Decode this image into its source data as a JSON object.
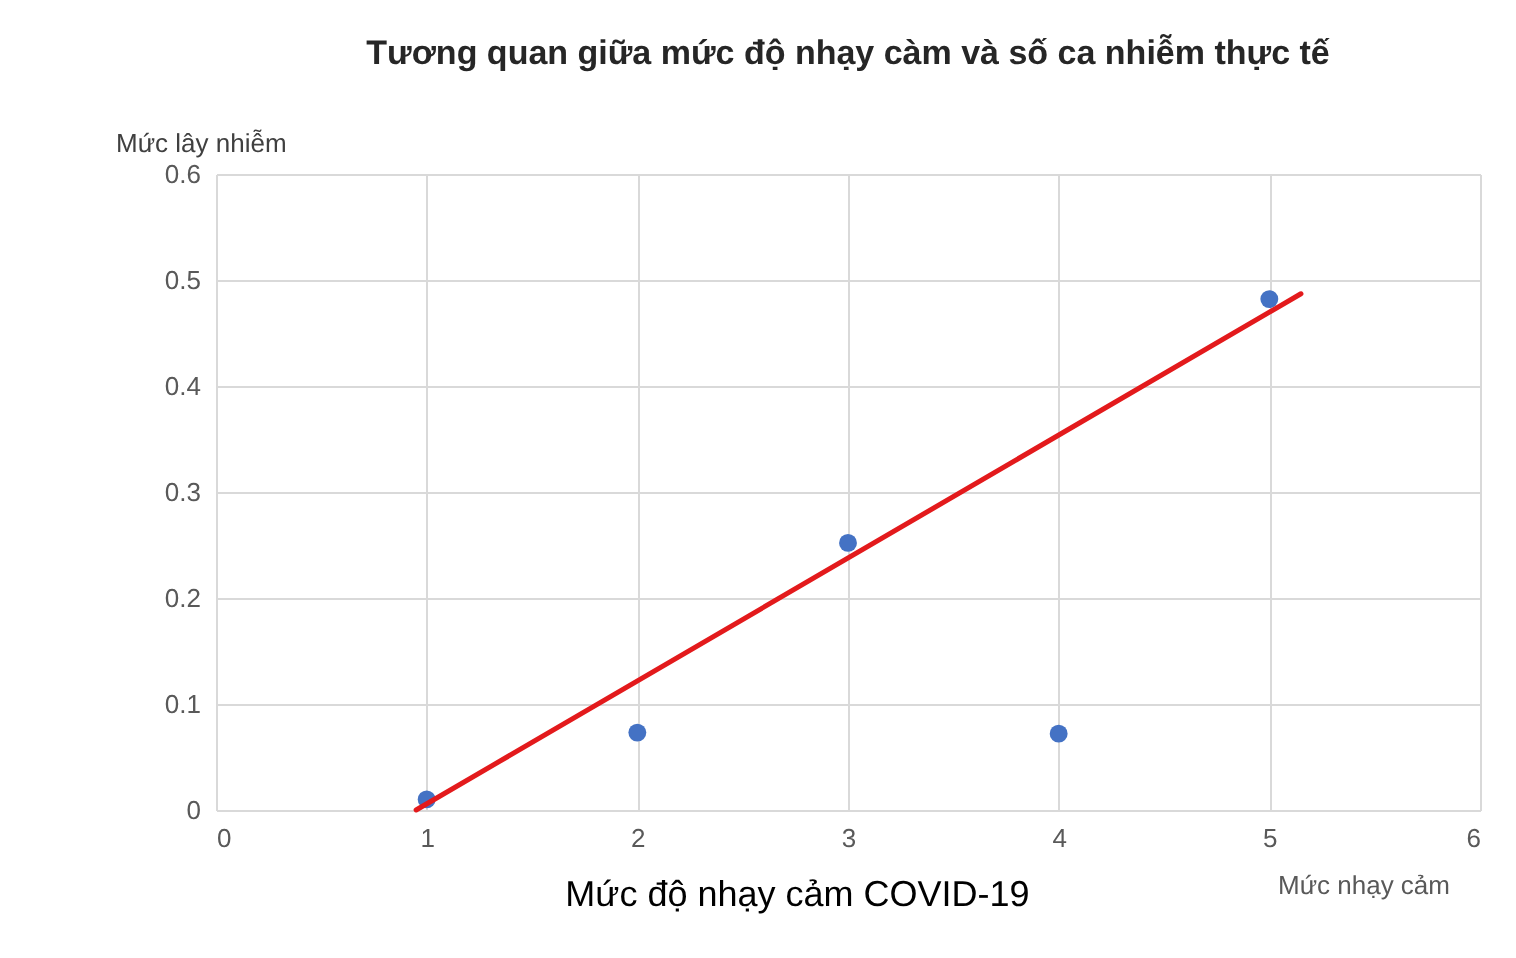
{
  "chart_data": {
    "type": "scatter",
    "title": "Tương quan giữa mức độ nhạy càm và số ca nhiễm thực tế",
    "xlabel": "Mức độ nhạy cảm COVID-19",
    "ylabel": "Mức lây nhiễm",
    "annotations": [
      "Mức nhạy cảm"
    ],
    "series": [
      {
        "color": "#4472c4",
        "x": [
          1,
          2,
          3,
          4,
          5
        ],
        "values": [
          0.01,
          0.073,
          0.252,
          0.072,
          0.482
        ]
      },
      {
        "type": "line",
        "color": "#e31a1c",
        "line_style": "solid",
        "marker": "none",
        "x": [
          0.95,
          5.15
        ],
        "values": [
          0.0,
          0.487
        ]
      }
    ],
    "xlim": [
      0,
      6
    ],
    "xticks": [
      0,
      1,
      2,
      3,
      4,
      5,
      6
    ],
    "ylim": [
      0,
      0.6
    ],
    "yticks": [
      0,
      0.1,
      0.2,
      0.3,
      0.4,
      0.5,
      0.6
    ],
    "grid": true,
    "marker": "circle"
  }
}
